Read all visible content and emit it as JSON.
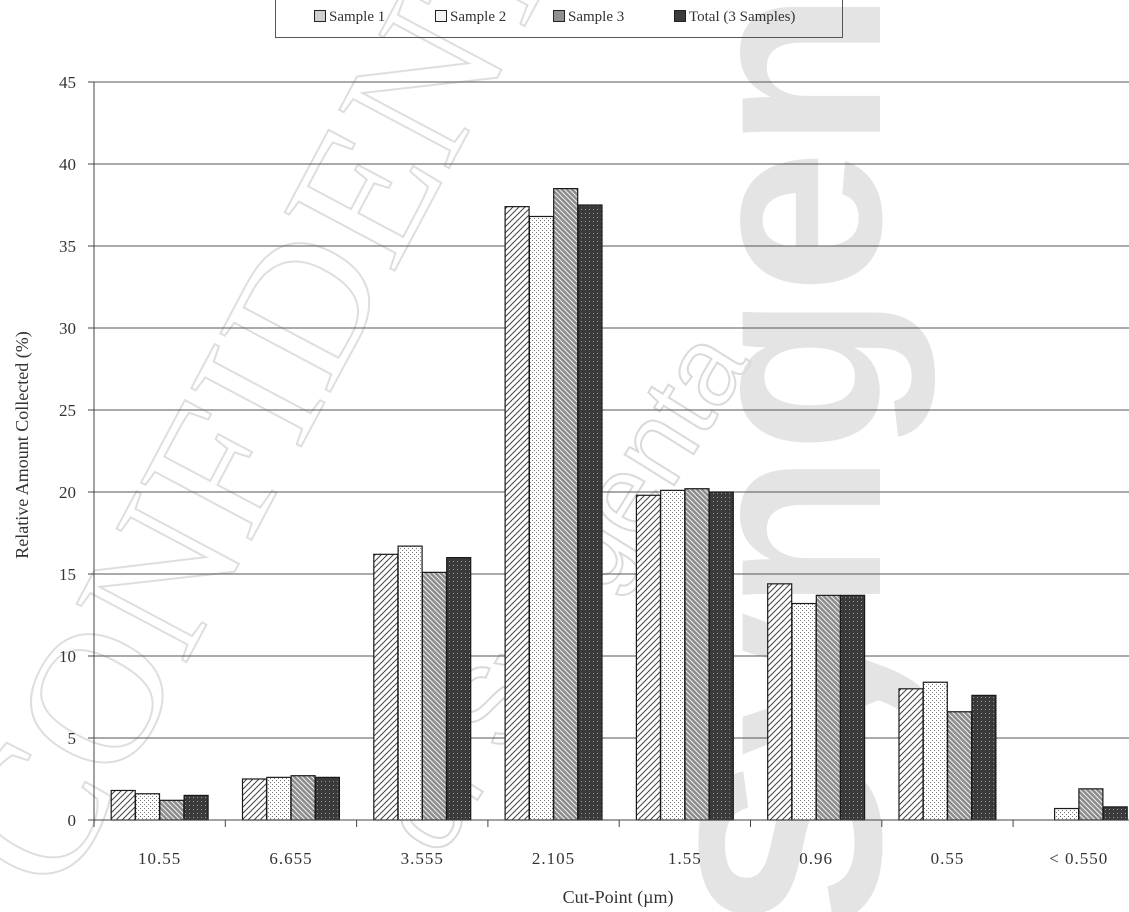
{
  "chart_data": {
    "type": "bar",
    "categories": [
      "10.55",
      "6.655",
      "3.555",
      "2.105",
      "1.55",
      "0.96",
      "0.55",
      "< 0.550"
    ],
    "series": [
      {
        "name": "Sample 1",
        "values": [
          1.8,
          2.5,
          16.2,
          37.4,
          19.8,
          14.4,
          8.0,
          0.0
        ]
      },
      {
        "name": "Sample 2",
        "values": [
          1.6,
          2.6,
          16.7,
          36.8,
          20.1,
          13.2,
          8.4,
          0.7
        ]
      },
      {
        "name": "Sample 3",
        "values": [
          1.2,
          2.7,
          15.1,
          38.5,
          20.2,
          13.7,
          6.6,
          1.9
        ]
      },
      {
        "name": "Total (3 Samples)",
        "values": [
          1.5,
          2.6,
          16.0,
          37.5,
          20.0,
          13.7,
          7.6,
          0.8
        ]
      }
    ],
    "xlabel": "Cut-Point (µm)",
    "ylabel": "Relative Amount Collected (%)",
    "ylim": [
      0,
      45
    ],
    "yticks": [
      0,
      5,
      10,
      15,
      20,
      25,
      30,
      35,
      40,
      45
    ],
    "grid": "horizontal",
    "legend_position": "top"
  },
  "watermark": {
    "left_text": "CONFIDENTIAL",
    "diagonal_text": "of Syngenta",
    "right_text": "Syngenta"
  },
  "colors": {
    "sample3_fill": "#909090",
    "total_fill": "#3c3c3c",
    "grid": "#555555",
    "watermark": "#e2e2e2"
  }
}
